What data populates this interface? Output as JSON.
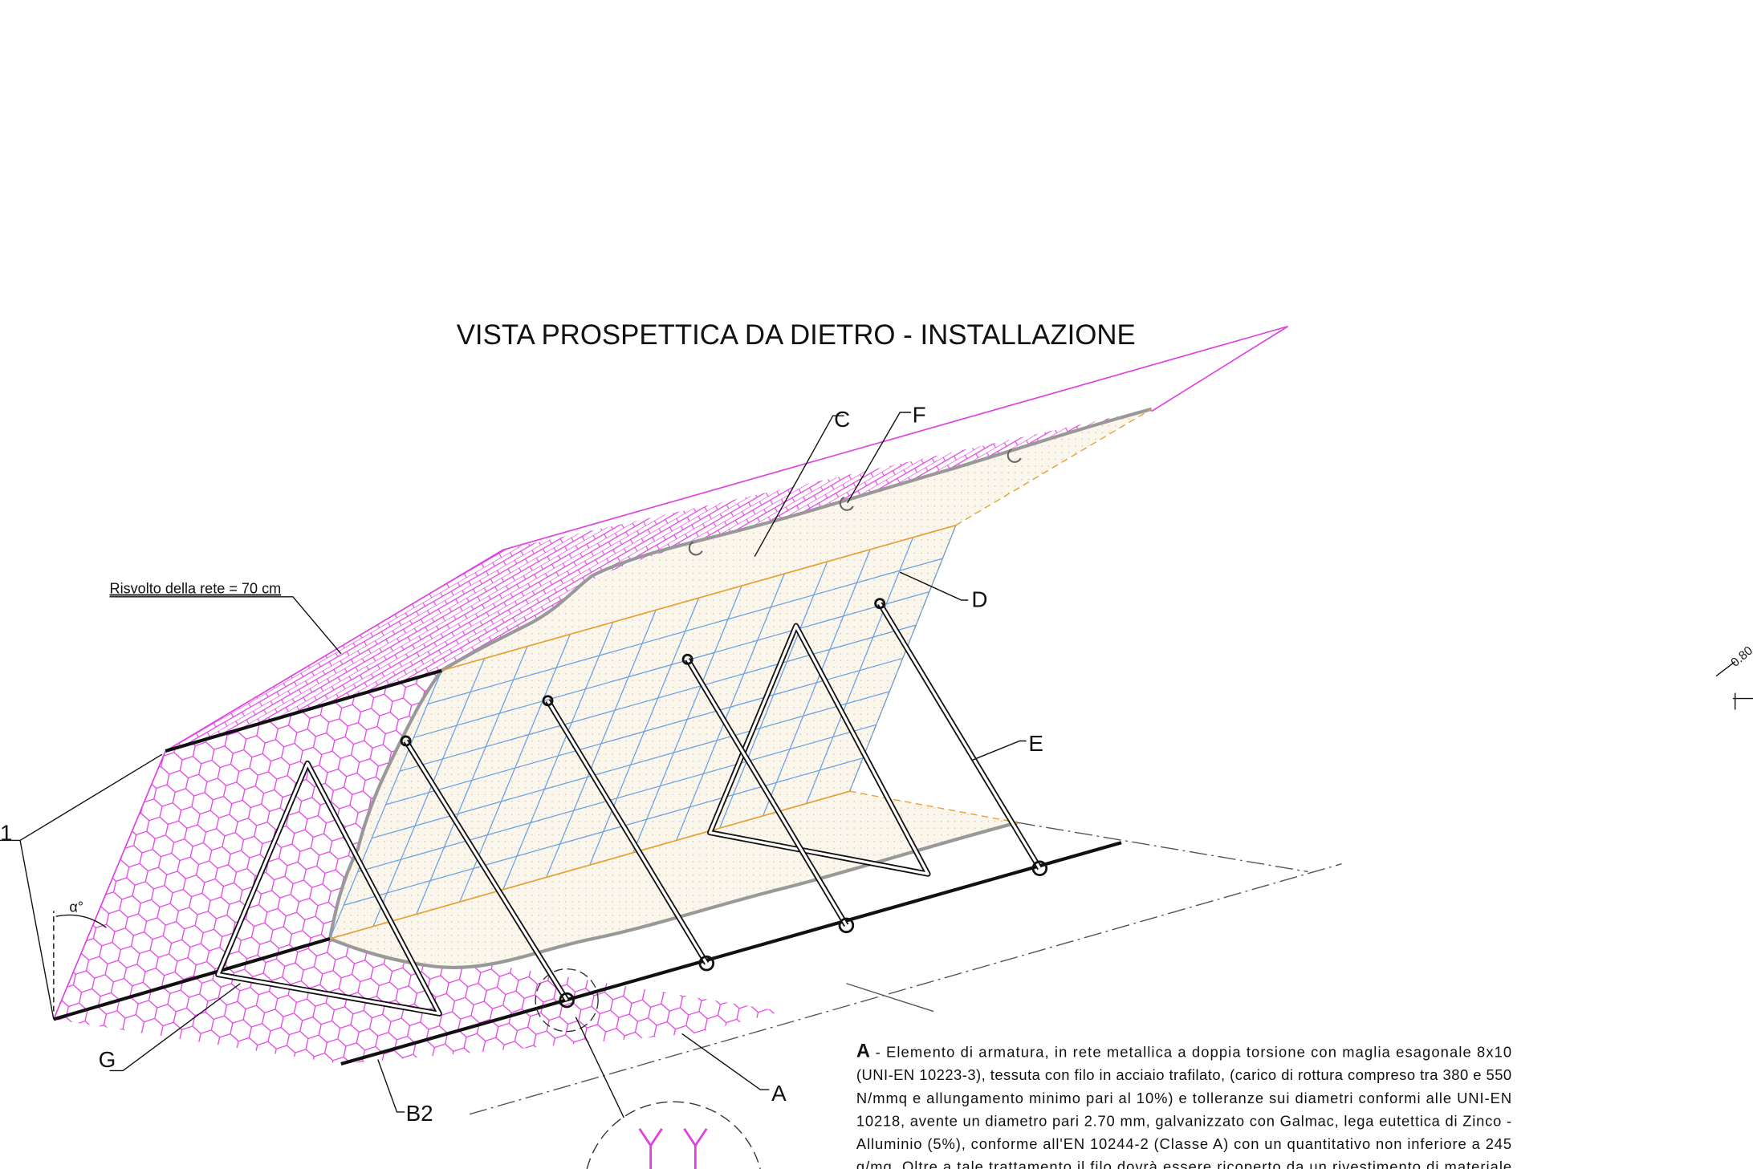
{
  "header": {
    "title": "VISTA PROSPETTICA DA DIETRO - INSTALLAZIONE"
  },
  "labels": {
    "c": "C",
    "f": "F",
    "d": "D",
    "e": "E",
    "a": "A",
    "b2": "B2",
    "g": "G",
    "one": "1",
    "alpha": "α°",
    "risvolto": "Risvolto della rete = 70 cm",
    "dim": "0.80"
  },
  "description": {
    "label": "A",
    "lines": [
      "- Elemento di armatura, in rete metallica a doppia torsione con maglia esagonale 8x10",
      "(UNI-EN 10223-3), tessuta con filo in acciaio trafilato, (carico di rottura compreso tra 380 e 550",
      "N/mmq e allungamento minimo pari al 10%) e tolleranze sui diametri conformi alle UNI-EN",
      "10218, avente un diametro pari 2.70 mm, galvanizzato con Galmac, lega eutettica di Zinco -",
      "Alluminio (5%), conforme all'EN 10244-2 (Classe A) con un quantitativo non inferiore a 245",
      "g/mq. Oltre a tale trattamento il filo dovrà essere ricoperto da un rivestimento di materiale"
    ]
  }
}
